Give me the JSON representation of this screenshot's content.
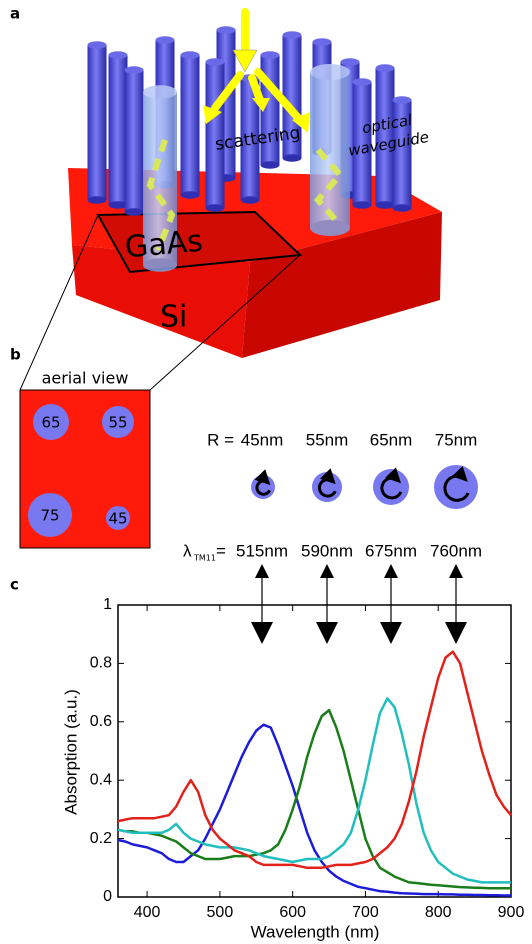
{
  "panel_a": {
    "label": "a",
    "scattering": "scattering",
    "optical": "optical",
    "waveguide": "waveguide",
    "gaas": "GaAs",
    "si": "Si"
  },
  "panel_b": {
    "label": "b",
    "aerial_view": "aerial view",
    "aerial_radii": [
      "65",
      "55",
      "75",
      "45"
    ],
    "r_label": "R =",
    "radii": [
      "45nm",
      "55nm",
      "65nm",
      "75nm"
    ],
    "lambda": "λ",
    "lambda_sub": "TM11",
    "equals": "=",
    "wavelengths": [
      "515nm",
      "590nm",
      "675nm",
      "760nm"
    ]
  },
  "chart_data": {
    "type": "line",
    "panel_label": "c",
    "x_label": "Wavelength (nm)",
    "y_label": "Absorption (a.u.)",
    "x": [
      360,
      370,
      380,
      390,
      400,
      410,
      420,
      430,
      440,
      450,
      460,
      470,
      480,
      490,
      500,
      510,
      520,
      530,
      540,
      550,
      560,
      570,
      580,
      590,
      600,
      610,
      620,
      630,
      640,
      650,
      660,
      670,
      680,
      690,
      700,
      710,
      720,
      730,
      740,
      750,
      760,
      770,
      780,
      790,
      800,
      810,
      820,
      830,
      840,
      850,
      860,
      870,
      880,
      890,
      900
    ],
    "series": [
      {
        "color": "#1c1cd9",
        "values": [
          0.195,
          0.19,
          0.18,
          0.175,
          0.17,
          0.16,
          0.15,
          0.13,
          0.12,
          0.12,
          0.14,
          0.16,
          0.2,
          0.25,
          0.3,
          0.36,
          0.42,
          0.48,
          0.53,
          0.57,
          0.59,
          0.58,
          0.52,
          0.45,
          0.38,
          0.3,
          0.22,
          0.16,
          0.12,
          0.09,
          0.07,
          0.055,
          0.045,
          0.035,
          0.03,
          0.025,
          0.02,
          0.018,
          0.015,
          0.013,
          0.012,
          0.011,
          0.01,
          0.01,
          0.01,
          0.009,
          0.009,
          0.008,
          0.008,
          0.007,
          0.007,
          0.006,
          0.006,
          0.005,
          0.005
        ]
      },
      {
        "color": "#1a7d1a",
        "values": [
          0.23,
          0.225,
          0.225,
          0.22,
          0.22,
          0.215,
          0.21,
          0.2,
          0.19,
          0.17,
          0.15,
          0.14,
          0.13,
          0.13,
          0.13,
          0.135,
          0.14,
          0.14,
          0.14,
          0.145,
          0.15,
          0.16,
          0.18,
          0.23,
          0.3,
          0.38,
          0.48,
          0.56,
          0.62,
          0.64,
          0.58,
          0.5,
          0.4,
          0.3,
          0.2,
          0.14,
          0.1,
          0.085,
          0.07,
          0.06,
          0.05,
          0.048,
          0.045,
          0.042,
          0.04,
          0.038,
          0.036,
          0.034,
          0.033,
          0.032,
          0.031,
          0.03,
          0.03,
          0.03,
          0.03
        ]
      },
      {
        "color": "#22bdbd",
        "values": [
          0.23,
          0.225,
          0.22,
          0.22,
          0.22,
          0.22,
          0.22,
          0.23,
          0.25,
          0.22,
          0.2,
          0.19,
          0.18,
          0.175,
          0.17,
          0.17,
          0.17,
          0.165,
          0.16,
          0.15,
          0.14,
          0.135,
          0.13,
          0.125,
          0.12,
          0.125,
          0.13,
          0.13,
          0.13,
          0.14,
          0.16,
          0.18,
          0.22,
          0.3,
          0.4,
          0.52,
          0.63,
          0.68,
          0.65,
          0.56,
          0.45,
          0.32,
          0.22,
          0.16,
          0.12,
          0.1,
          0.08,
          0.07,
          0.06,
          0.055,
          0.05,
          0.05,
          0.05,
          0.05,
          0.05
        ]
      },
      {
        "color": "#e3211b",
        "values": [
          0.26,
          0.265,
          0.27,
          0.27,
          0.27,
          0.27,
          0.275,
          0.28,
          0.31,
          0.36,
          0.4,
          0.36,
          0.28,
          0.23,
          0.2,
          0.18,
          0.16,
          0.15,
          0.14,
          0.12,
          0.11,
          0.11,
          0.11,
          0.11,
          0.11,
          0.105,
          0.1,
          0.1,
          0.1,
          0.105,
          0.11,
          0.11,
          0.11,
          0.115,
          0.12,
          0.13,
          0.15,
          0.17,
          0.2,
          0.25,
          0.33,
          0.43,
          0.55,
          0.65,
          0.75,
          0.82,
          0.84,
          0.8,
          0.7,
          0.6,
          0.5,
          0.42,
          0.35,
          0.31,
          0.28
        ]
      }
    ],
    "xlim": [
      360,
      900
    ],
    "ylim": [
      0,
      1
    ],
    "xticks": [
      400,
      500,
      600,
      700,
      800,
      900
    ],
    "yticks": [
      0,
      0.2,
      0.4,
      0.6,
      0.8,
      1
    ]
  }
}
